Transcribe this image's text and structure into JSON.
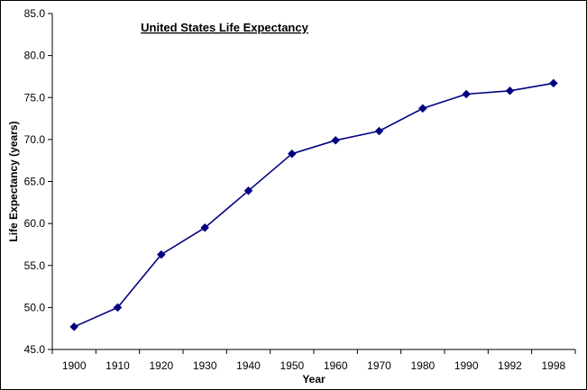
{
  "chart_data": {
    "type": "line",
    "title": "United States Life Expectancy",
    "xlabel": "Year",
    "ylabel": "Life Expectancy (years)",
    "categories": [
      "1900",
      "1910",
      "1920",
      "1930",
      "1940",
      "1950",
      "1960",
      "1970",
      "1980",
      "1990",
      "1992",
      "1998"
    ],
    "series": [
      {
        "name": "Life Expectancy",
        "values": [
          47.7,
          50.0,
          56.3,
          59.5,
          63.9,
          68.3,
          69.9,
          71.0,
          73.7,
          75.4,
          75.8,
          76.7
        ]
      }
    ],
    "ylim": [
      45.0,
      85.0
    ],
    "yticks": [
      "45.0",
      "50.0",
      "55.0",
      "60.0",
      "65.0",
      "70.0",
      "75.0",
      "80.0",
      "85.0"
    ],
    "ytick_values": [
      45,
      50,
      55,
      60,
      65,
      70,
      75,
      80,
      85
    ],
    "grid": false,
    "legend": "none",
    "line_color": "#000080",
    "marker": "diamond"
  }
}
